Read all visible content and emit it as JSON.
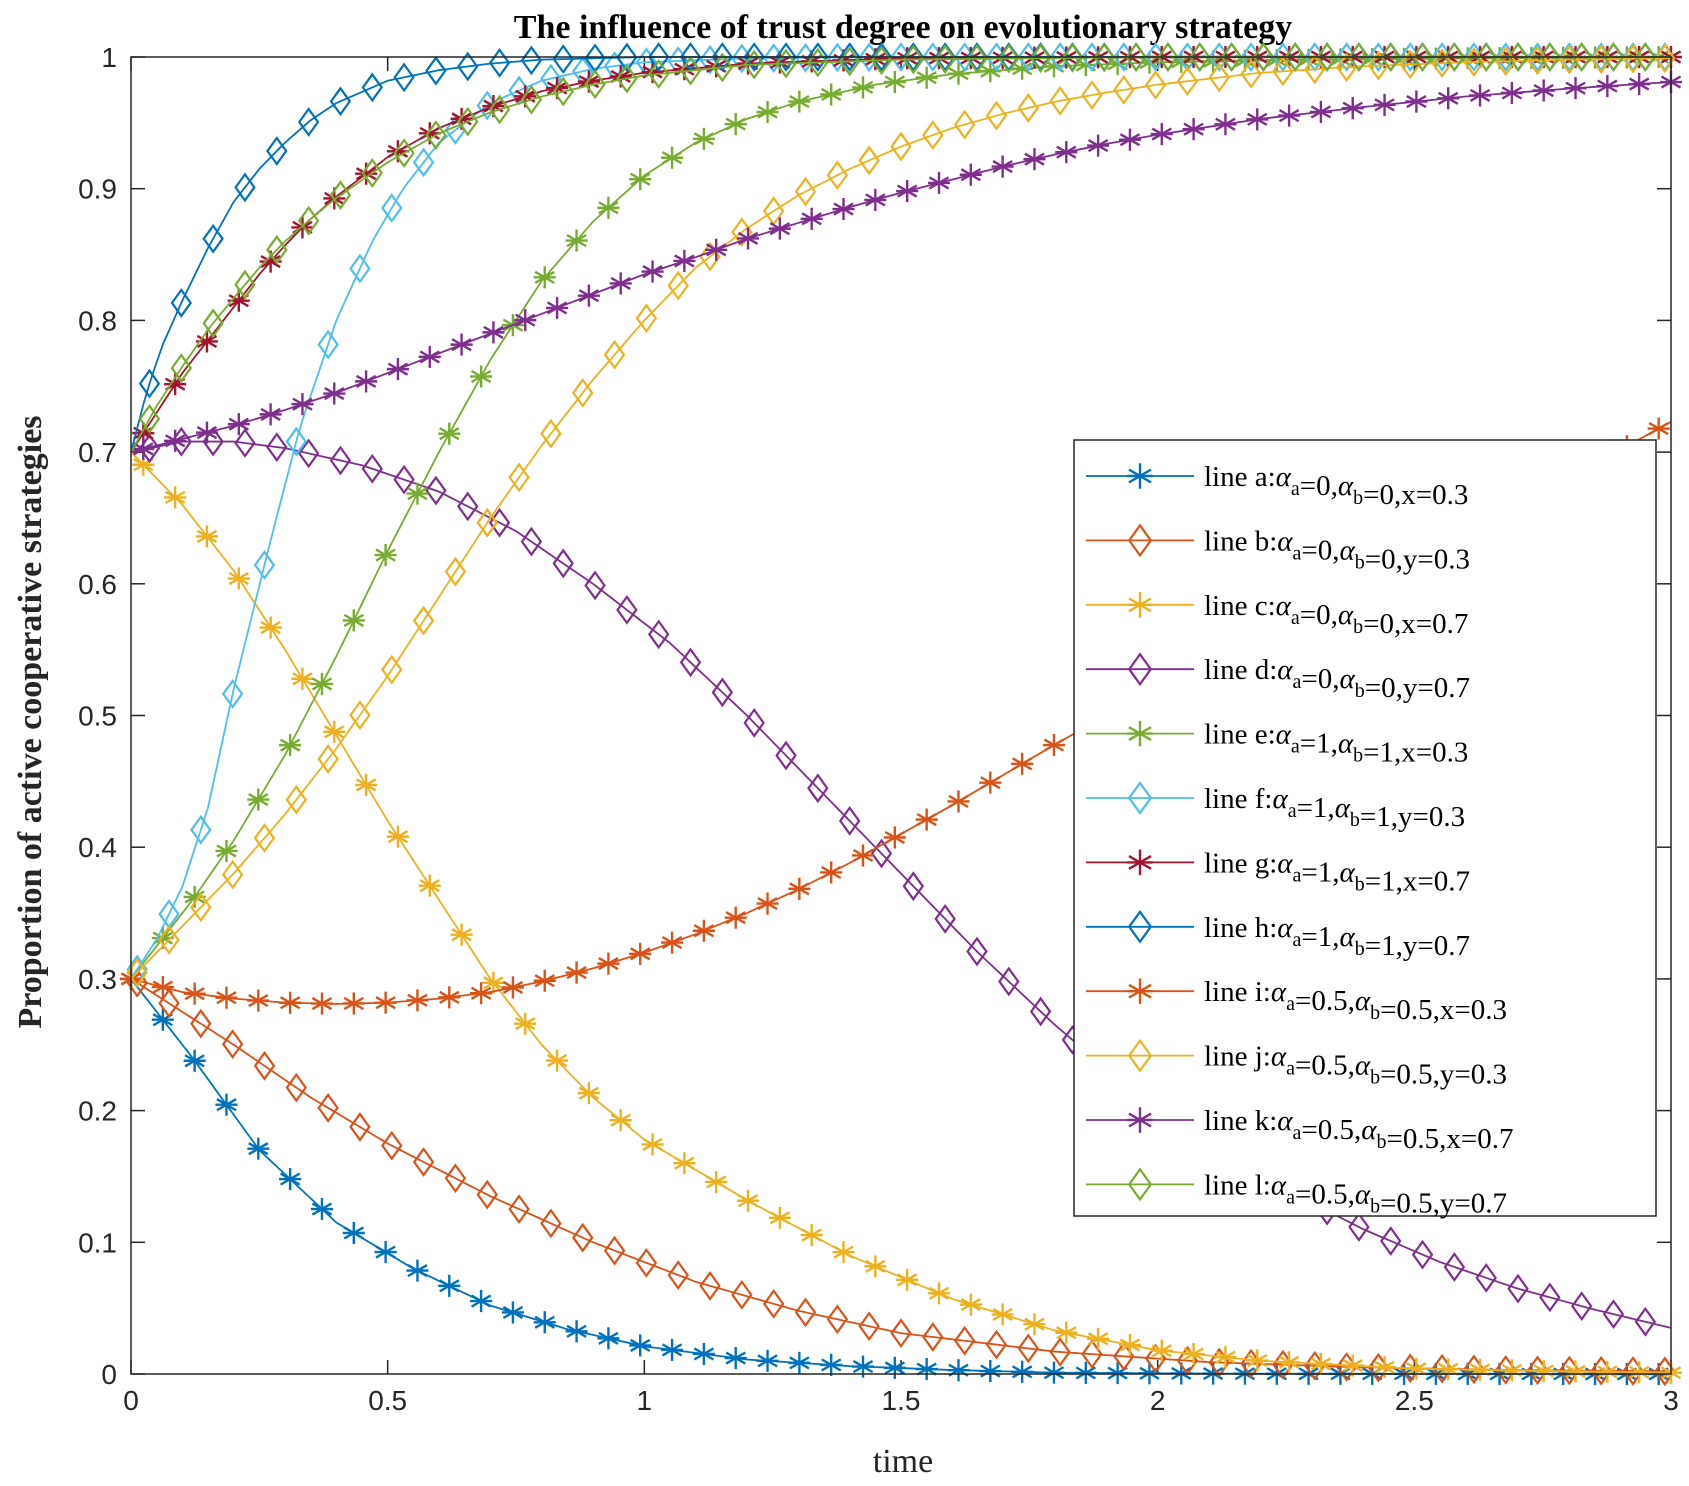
{
  "chart_data": {
    "type": "line",
    "title": "The influence of trust degree on evolutionary strategy",
    "xlabel": "time",
    "ylabel": "Proportion of active cooperative strategies",
    "xlim": [
      0,
      3
    ],
    "ylim": [
      0,
      1
    ],
    "xticks": [
      0,
      0.5,
      1,
      1.5,
      2,
      2.5,
      3
    ],
    "xtick_labels": [
      "0",
      "0.5",
      "1",
      "1.5",
      "2",
      "2.5",
      "3"
    ],
    "yticks": [
      0,
      0.1,
      0.2,
      0.3,
      0.4,
      0.5,
      0.6,
      0.7,
      0.8,
      0.9,
      1
    ],
    "ytick_labels": [
      "0",
      "0.1",
      "0.2",
      "0.3",
      "0.4",
      "0.5",
      "0.6",
      "0.7",
      "0.8",
      "0.9",
      "1"
    ],
    "legend_position": "right-middle",
    "series": [
      {
        "id": "a",
        "name": "line a:αa=0,αb=0,x=0.3",
        "prefix": "line a:",
        "alpha_a": "0",
        "alpha_b": "0",
        "param": "x=0.3",
        "color": "#0072BD",
        "marker": "star",
        "x": [
          0,
          0.12,
          0.25,
          0.4,
          0.55,
          0.7,
          0.85,
          1.0,
          1.2,
          1.4,
          1.6,
          1.8,
          2.0,
          2.2,
          2.5,
          2.8,
          3.0
        ],
        "y": [
          0.3,
          0.24,
          0.17,
          0.115,
          0.08,
          0.052,
          0.034,
          0.021,
          0.011,
          0.006,
          0.003,
          0.001,
          0.0005,
          0.0002,
          0.0001,
          0,
          0
        ]
      },
      {
        "id": "b",
        "name": "line b:αa=0,αb=0,y=0.3",
        "prefix": "line b:",
        "alpha_a": "0",
        "alpha_b": "0",
        "param": "y=0.3",
        "color": "#D95319",
        "marker": "diamond",
        "x": [
          0,
          0.1,
          0.2,
          0.35,
          0.5,
          0.7,
          0.9,
          1.1,
          1.3,
          1.5,
          1.8,
          2.1,
          2.4,
          2.7,
          3.0
        ],
        "y": [
          0.3,
          0.275,
          0.25,
          0.21,
          0.175,
          0.135,
          0.1,
          0.07,
          0.048,
          0.031,
          0.017,
          0.009,
          0.005,
          0.003,
          0.002
        ]
      },
      {
        "id": "c",
        "name": "line c:αa=0,αb=0,x=0.7",
        "prefix": "line c:",
        "alpha_a": "0",
        "alpha_b": "0",
        "param": "x=0.7",
        "color": "#EDB120",
        "marker": "star",
        "x": [
          0,
          0.1,
          0.2,
          0.3,
          0.4,
          0.5,
          0.6,
          0.7,
          0.8,
          0.9,
          1.0,
          1.2,
          1.4,
          1.6,
          1.8,
          2.0,
          2.2,
          2.5,
          2.8,
          3.0
        ],
        "y": [
          0.7,
          0.66,
          0.61,
          0.55,
          0.485,
          0.42,
          0.36,
          0.3,
          0.25,
          0.21,
          0.178,
          0.132,
          0.09,
          0.057,
          0.033,
          0.018,
          0.01,
          0.004,
          0.002,
          0.001
        ]
      },
      {
        "id": "d",
        "name": "line d:αa=0,αb=0,y=0.7",
        "prefix": "line d:",
        "alpha_a": "0",
        "alpha_b": "0",
        "param": "y=0.7",
        "color": "#7E2F8E",
        "marker": "diamond",
        "x": [
          0,
          0.1,
          0.2,
          0.3,
          0.45,
          0.6,
          0.75,
          0.9,
          1.05,
          1.2,
          1.35,
          1.5,
          1.65,
          1.8,
          1.95,
          2.1,
          2.25,
          2.4,
          2.55,
          2.7,
          2.85,
          3.0
        ],
        "y": [
          0.7,
          0.708,
          0.708,
          0.703,
          0.69,
          0.67,
          0.64,
          0.6,
          0.555,
          0.5,
          0.44,
          0.38,
          0.32,
          0.265,
          0.215,
          0.175,
          0.14,
          0.11,
          0.085,
          0.065,
          0.049,
          0.035
        ]
      },
      {
        "id": "e",
        "name": "line e:αa=1,αb=1,x=0.3",
        "prefix": "line e:",
        "alpha_a": "1",
        "alpha_b": "1",
        "param": "x=0.3",
        "color": "#77AC30",
        "marker": "star",
        "x": [
          0,
          0.12,
          0.2,
          0.3,
          0.4,
          0.5,
          0.6,
          0.7,
          0.8,
          0.9,
          1.0,
          1.1,
          1.2,
          1.3,
          1.45,
          1.6,
          1.8,
          2.0,
          2.3,
          2.6,
          3.0
        ],
        "y": [
          0.3,
          0.36,
          0.405,
          0.47,
          0.545,
          0.625,
          0.7,
          0.77,
          0.83,
          0.875,
          0.91,
          0.935,
          0.953,
          0.966,
          0.979,
          0.987,
          0.993,
          0.996,
          0.998,
          0.999,
          1.0
        ]
      },
      {
        "id": "f",
        "name": "line f:αa=1,αb=1,y=0.3",
        "prefix": "line f:",
        "alpha_a": "1",
        "alpha_b": "1",
        "param": "y=0.3",
        "color": "#4DBEEE",
        "marker": "diamond",
        "x": [
          0,
          0.05,
          0.1,
          0.15,
          0.2,
          0.27,
          0.33,
          0.4,
          0.47,
          0.53,
          0.6,
          0.7,
          0.8,
          0.9,
          1.0,
          1.2,
          1.5,
          2.0,
          2.5,
          3.0
        ],
        "y": [
          0.3,
          0.33,
          0.37,
          0.43,
          0.52,
          0.63,
          0.72,
          0.8,
          0.86,
          0.9,
          0.935,
          0.965,
          0.982,
          0.991,
          0.996,
          0.999,
          1.0,
          1.0,
          1.0,
          1.0
        ]
      },
      {
        "id": "g",
        "name": "line g:αa=1,αb=1,x=0.7",
        "prefix": "line g:",
        "alpha_a": "1",
        "alpha_b": "1",
        "param": "x=0.7",
        "color": "#A2142F",
        "marker": "star",
        "x": [
          0,
          0.05,
          0.1,
          0.15,
          0.2,
          0.25,
          0.3,
          0.35,
          0.4,
          0.5,
          0.6,
          0.7,
          0.8,
          0.9,
          1.0,
          1.2,
          1.5,
          2.0,
          2.5,
          3.0
        ],
        "y": [
          0.7,
          0.73,
          0.76,
          0.785,
          0.81,
          0.835,
          0.857,
          0.877,
          0.894,
          0.924,
          0.946,
          0.962,
          0.974,
          0.982,
          0.988,
          0.995,
          0.999,
          1.0,
          1.0,
          1.0
        ]
      },
      {
        "id": "h",
        "name": "line h:αa=1,αb=1,y=0.7",
        "prefix": "line h:",
        "alpha_a": "1",
        "alpha_b": "1",
        "param": "y=0.7",
        "color": "#0072BD",
        "marker": "diamond",
        "x": [
          0,
          0.03,
          0.06,
          0.1,
          0.15,
          0.2,
          0.25,
          0.3,
          0.35,
          0.4,
          0.5,
          0.6,
          0.7,
          0.8,
          0.9,
          1.0,
          1.2,
          1.5,
          2.0,
          2.5,
          3.0
        ],
        "y": [
          0.7,
          0.745,
          0.78,
          0.815,
          0.855,
          0.89,
          0.915,
          0.935,
          0.952,
          0.965,
          0.982,
          0.99,
          0.995,
          0.998,
          0.999,
          1.0,
          1.0,
          1.0,
          1.0,
          1.0,
          1.0
        ]
      },
      {
        "id": "i",
        "name": "line i:αa=0.5,αb=0.5,x=0.3",
        "prefix": "line i:",
        "alpha_a": "0.5",
        "alpha_b": "0.5",
        "param": "x=0.3",
        "color": "#D95319",
        "marker": "star",
        "x": [
          0,
          0.1,
          0.2,
          0.3,
          0.4,
          0.5,
          0.6,
          0.7,
          0.8,
          0.9,
          1.0,
          1.1,
          1.2,
          1.3,
          1.4,
          1.5,
          1.6,
          1.7,
          1.8,
          1.9,
          2.0,
          2.2,
          2.4,
          2.6,
          2.8,
          3.0
        ],
        "y": [
          0.3,
          0.29,
          0.285,
          0.282,
          0.281,
          0.282,
          0.285,
          0.29,
          0.298,
          0.308,
          0.32,
          0.334,
          0.35,
          0.368,
          0.388,
          0.41,
          0.432,
          0.455,
          0.478,
          0.5,
          0.522,
          0.565,
          0.605,
          0.643,
          0.68,
          0.723
        ]
      },
      {
        "id": "j",
        "name": "line j:αa=0.5,αb=0.5,y=0.3",
        "prefix": "line j:",
        "alpha_a": "0.5",
        "alpha_b": "0.5",
        "param": "y=0.3",
        "color": "#EDB120",
        "marker": "diamond",
        "x": [
          0,
          0.1,
          0.2,
          0.3,
          0.4,
          0.5,
          0.6,
          0.7,
          0.8,
          0.9,
          1.0,
          1.1,
          1.2,
          1.3,
          1.4,
          1.5,
          1.6,
          1.7,
          1.8,
          1.9,
          2.0,
          2.2,
          2.4,
          2.6,
          2.8,
          3.0
        ],
        "y": [
          0.3,
          0.34,
          0.38,
          0.425,
          0.475,
          0.53,
          0.59,
          0.65,
          0.705,
          0.755,
          0.8,
          0.84,
          0.87,
          0.895,
          0.915,
          0.932,
          0.946,
          0.957,
          0.966,
          0.973,
          0.979,
          0.988,
          0.993,
          0.996,
          0.998,
          0.999
        ]
      },
      {
        "id": "k",
        "name": "line k:αa=0.5,αb=0.5,x=0.7",
        "prefix": "line k:",
        "alpha_a": "0.5",
        "alpha_b": "0.5",
        "param": "x=0.7",
        "color": "#7E2F8E",
        "marker": "star",
        "x": [
          0,
          0.1,
          0.2,
          0.3,
          0.4,
          0.5,
          0.6,
          0.7,
          0.8,
          0.9,
          1.0,
          1.1,
          1.2,
          1.3,
          1.4,
          1.5,
          1.6,
          1.7,
          1.8,
          1.9,
          2.0,
          2.2,
          2.4,
          2.6,
          2.8,
          3.0
        ],
        "y": [
          0.7,
          0.71,
          0.72,
          0.732,
          0.745,
          0.76,
          0.775,
          0.79,
          0.805,
          0.82,
          0.835,
          0.848,
          0.862,
          0.874,
          0.886,
          0.897,
          0.907,
          0.917,
          0.926,
          0.934,
          0.941,
          0.953,
          0.962,
          0.97,
          0.976,
          0.981
        ]
      },
      {
        "id": "l",
        "name": "line l:αa=0.5,αb=0.5,y=0.7",
        "prefix": "line l:",
        "alpha_a": "0.5",
        "alpha_b": "0.5",
        "param": "y=0.7",
        "color": "#77AC30",
        "marker": "diamond",
        "x": [
          0,
          0.05,
          0.1,
          0.15,
          0.2,
          0.25,
          0.3,
          0.35,
          0.4,
          0.5,
          0.6,
          0.7,
          0.8,
          0.9,
          1.0,
          1.2,
          1.5,
          2.0,
          2.5,
          3.0
        ],
        "y": [
          0.7,
          0.735,
          0.765,
          0.793,
          0.817,
          0.84,
          0.86,
          0.877,
          0.893,
          0.92,
          0.942,
          0.958,
          0.97,
          0.979,
          0.986,
          0.994,
          0.998,
          1.0,
          1.0,
          1.0
        ]
      }
    ]
  }
}
